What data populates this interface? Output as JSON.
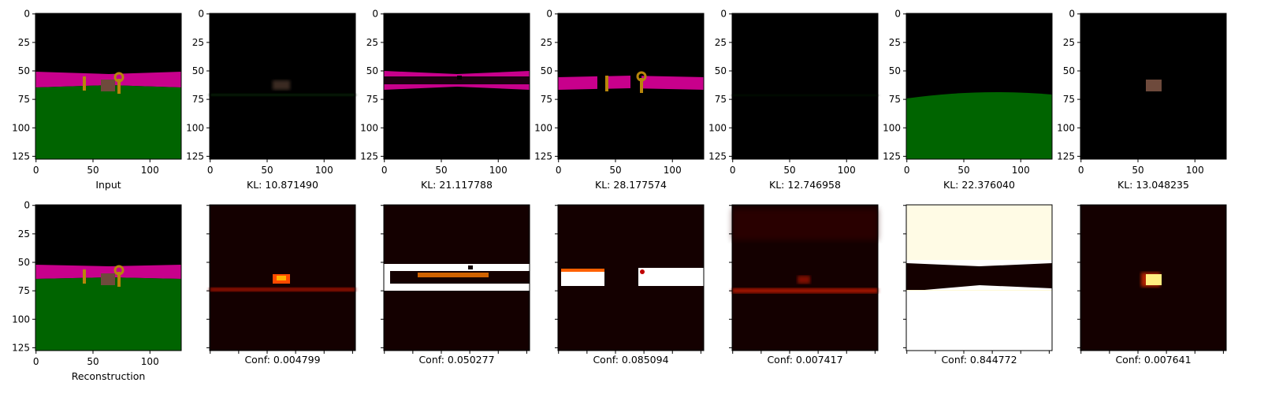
{
  "chart_data": {
    "type": "image-grid",
    "image_size": [
      128,
      128
    ],
    "axis_ticks": [
      0,
      25,
      50,
      75,
      100,
      125
    ],
    "x_ticks": [
      0,
      50,
      100
    ],
    "colors": {
      "sky": "#000000",
      "wall": "#c8008c",
      "floor": "#006400",
      "key": "#b8860b",
      "box": "#6e4a3c",
      "heat_low": "#140000",
      "heat_high": "#ffffff"
    },
    "top_row": [
      {
        "caption": "Input"
      },
      {
        "caption": "KL: 10.871490"
      },
      {
        "caption": "KL: 21.117788"
      },
      {
        "caption": "KL: 28.177574"
      },
      {
        "caption": "KL: 12.746958"
      },
      {
        "caption": "KL: 22.376040"
      },
      {
        "caption": "KL: 13.048235"
      }
    ],
    "bottom_row": [
      {
        "caption": "Reconstruction"
      },
      {
        "caption": "Conf: 0.004799"
      },
      {
        "caption": "Conf: 0.050277"
      },
      {
        "caption": "Conf: 0.085094"
      },
      {
        "caption": "Conf: 0.007417"
      },
      {
        "caption": "Conf: 0.844772"
      },
      {
        "caption": "Conf: 0.007641"
      }
    ]
  }
}
